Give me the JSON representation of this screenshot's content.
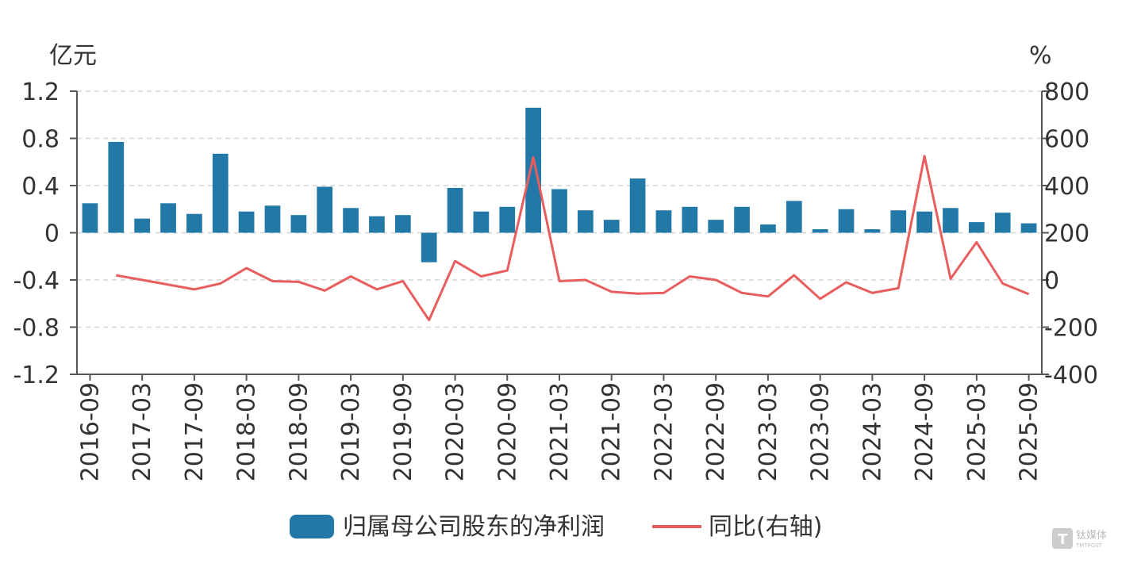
{
  "chart_data": {
    "type": "bar",
    "left_axis_unit": "亿元",
    "right_axis_unit": "%",
    "left_ticks": [
      "1.2",
      "0.8",
      "0.4",
      "0",
      "-0.4",
      "-0.8",
      "-1.2"
    ],
    "right_ticks": [
      "800",
      "600",
      "400",
      "200",
      "0",
      "-200",
      "-400"
    ],
    "ylim_left": [
      -1.2,
      1.2
    ],
    "ylim_right": [
      -400,
      800
    ],
    "grid": true,
    "legend_placement": "bottom-center",
    "x_tick_labels": [
      "2016-09",
      "2017-03",
      "2017-09",
      "2018-03",
      "2018-09",
      "2019-03",
      "2019-09",
      "2020-03",
      "2020-09",
      "2021-03",
      "2021-09",
      "2022-03",
      "2022-09",
      "2023-03",
      "2023-09",
      "2024-03",
      "2024-09",
      "2025-03",
      "2025-09"
    ],
    "series": [
      {
        "name": "归属母公司股东的净利润",
        "type": "bar",
        "axis": "left",
        "color": "#2279a8",
        "values": [
          0.25,
          0.77,
          0.12,
          0.25,
          0.16,
          0.67,
          0.18,
          0.23,
          0.15,
          0.39,
          0.21,
          0.14,
          0.15,
          -0.25,
          0.38,
          0.18,
          0.22,
          1.06,
          0.37,
          0.19,
          0.11,
          0.46,
          0.19,
          0.22,
          0.11,
          0.22,
          0.07,
          0.27,
          0.03,
          0.2,
          0.03,
          0.19,
          0.18,
          0.21,
          0.09,
          0.17,
          0.08
        ]
      },
      {
        "name": "同比(右轴)",
        "type": "line",
        "axis": "right",
        "color": "#e85d5d",
        "values": [
          null,
          20,
          0,
          -20,
          -40,
          -15,
          50,
          -5,
          -8,
          -45,
          15,
          -40,
          -5,
          -170,
          80,
          15,
          40,
          520,
          -5,
          0,
          -50,
          -58,
          -55,
          15,
          0,
          -55,
          -70,
          20,
          -80,
          -10,
          -55,
          -35,
          525,
          5,
          160,
          -15,
          -60
        ]
      }
    ]
  },
  "watermark": {
    "glyph": "T",
    "text": "钛媒体",
    "sub": "TMTPOST"
  }
}
